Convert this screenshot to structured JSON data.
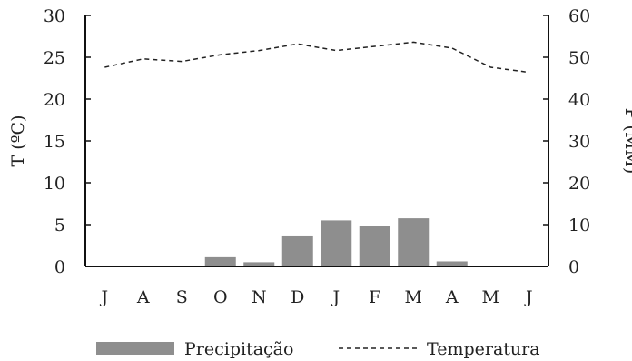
{
  "chart_data": {
    "type": "bar",
    "categories": [
      "J",
      "A",
      "S",
      "O",
      "N",
      "D",
      "J",
      "F",
      "M",
      "A",
      "M",
      "J"
    ],
    "series": [
      {
        "name": "Precipitação",
        "type": "bar",
        "axis": "right",
        "values": [
          0,
          0.2,
          0,
          2.2,
          1.0,
          7.4,
          11.0,
          9.6,
          11.5,
          1.2,
          0,
          0
        ],
        "color": "#8e8e8e"
      },
      {
        "name": "Temperatura",
        "type": "line",
        "axis": "left",
        "values": [
          23.8,
          24.8,
          24.5,
          25.3,
          25.8,
          26.6,
          25.8,
          26.3,
          26.8,
          26.1,
          23.8,
          23.2
        ],
        "color": "#222222",
        "style": "dashed"
      }
    ],
    "left_axis": {
      "label": "T (ºC)",
      "ylim": [
        0,
        30
      ],
      "ticks": [
        0,
        5,
        10,
        15,
        20,
        25,
        30
      ]
    },
    "right_axis": {
      "label": "P (MM)",
      "ylim": [
        0,
        60
      ],
      "ticks": [
        0,
        10,
        20,
        30,
        40,
        50,
        60
      ]
    },
    "legend_position": "bottom",
    "grid": false
  }
}
